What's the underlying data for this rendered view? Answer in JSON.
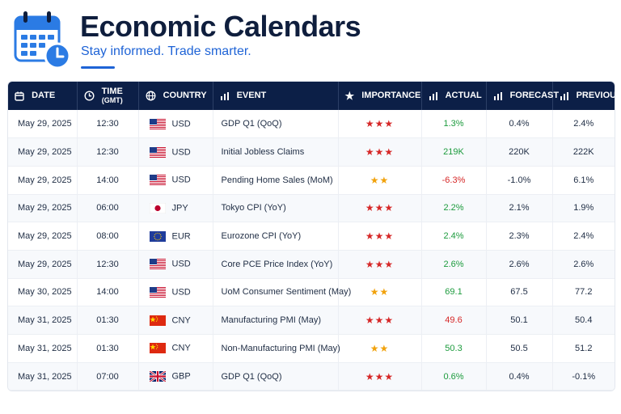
{
  "header": {
    "title": "Economic Calendars",
    "subtitle": "Stay informed. Trade smarter."
  },
  "colors": {
    "navy": "#0c1f47",
    "accent_blue": "#1e63d6",
    "high_importance": "#d62828",
    "medium_importance": "#f1a20c",
    "positive": "#1c9b3d",
    "negative": "#d62828"
  },
  "columns": {
    "date": "DATE",
    "time_line1": "TIME",
    "time_line2": "(GMT)",
    "country": "COUNTRY",
    "event": "EVENT",
    "importance": "IMPORTANCE",
    "actual": "ACTUAL",
    "forecast": "FORECAST",
    "previous": "PREVIOUS"
  },
  "rows": [
    {
      "date": "May 29, 2025",
      "time": "12:30",
      "flag": "us-flag-icon",
      "country": "USD",
      "event": "GDP Q1 (QoQ)",
      "importance": 3,
      "actual": "1.3%",
      "actual_trend": "pos",
      "forecast": "0.4%",
      "previous": "2.4%"
    },
    {
      "date": "May 29, 2025",
      "time": "12:30",
      "flag": "us-flag-icon",
      "country": "USD",
      "event": "Initial Jobless Claims",
      "importance": 3,
      "actual": "219K",
      "actual_trend": "pos",
      "forecast": "220K",
      "previous": "222K"
    },
    {
      "date": "May 29, 2025",
      "time": "14:00",
      "flag": "us-flag-icon",
      "country": "USD",
      "event": "Pending Home Sales (MoM)",
      "importance": 2,
      "actual": "-6.3%",
      "actual_trend": "neg",
      "forecast": "-1.0%",
      "previous": "6.1%"
    },
    {
      "date": "May 29, 2025",
      "time": "06:00",
      "flag": "jp-flag-icon",
      "country": "JPY",
      "event": "Tokyo CPI (YoY)",
      "importance": 3,
      "actual": "2.2%",
      "actual_trend": "pos",
      "forecast": "2.1%",
      "previous": "1.9%"
    },
    {
      "date": "May 29, 2025",
      "time": "08:00",
      "flag": "eu-flag-icon",
      "country": "EUR",
      "event": "Eurozone CPI (YoY)",
      "importance": 3,
      "actual": "2.4%",
      "actual_trend": "pos",
      "forecast": "2.3%",
      "previous": "2.4%"
    },
    {
      "date": "May 29, 2025",
      "time": "12:30",
      "flag": "us-flag-icon",
      "country": "USD",
      "event": "Core PCE Price Index (YoY)",
      "importance": 3,
      "actual": "2.6%",
      "actual_trend": "pos",
      "forecast": "2.6%",
      "previous": "2.6%"
    },
    {
      "date": "May 30, 2025",
      "time": "14:00",
      "flag": "us-flag-icon",
      "country": "USD",
      "event": "UoM Consumer Sentiment (May)",
      "importance": 2,
      "actual": "69.1",
      "actual_trend": "pos",
      "forecast": "67.5",
      "previous": "77.2"
    },
    {
      "date": "May 31, 2025",
      "time": "01:30",
      "flag": "cn-flag-icon",
      "country": "CNY",
      "event": "Manufacturing PMI (May)",
      "importance": 3,
      "actual": "49.6",
      "actual_trend": "neg",
      "forecast": "50.1",
      "previous": "50.4"
    },
    {
      "date": "May 31, 2025",
      "time": "01:30",
      "flag": "cn-flag-icon",
      "country": "CNY",
      "event": "Non-Manufacturing PMI (May)",
      "importance": 2,
      "actual": "50.3",
      "actual_trend": "pos",
      "forecast": "50.5",
      "previous": "51.2"
    },
    {
      "date": "May 31, 2025",
      "time": "07:00",
      "flag": "gb-flag-icon",
      "country": "GBP",
      "event": "GDP Q1 (QoQ)",
      "importance": 3,
      "actual": "0.6%",
      "actual_trend": "pos",
      "forecast": "0.4%",
      "previous": "-0.1%"
    }
  ]
}
